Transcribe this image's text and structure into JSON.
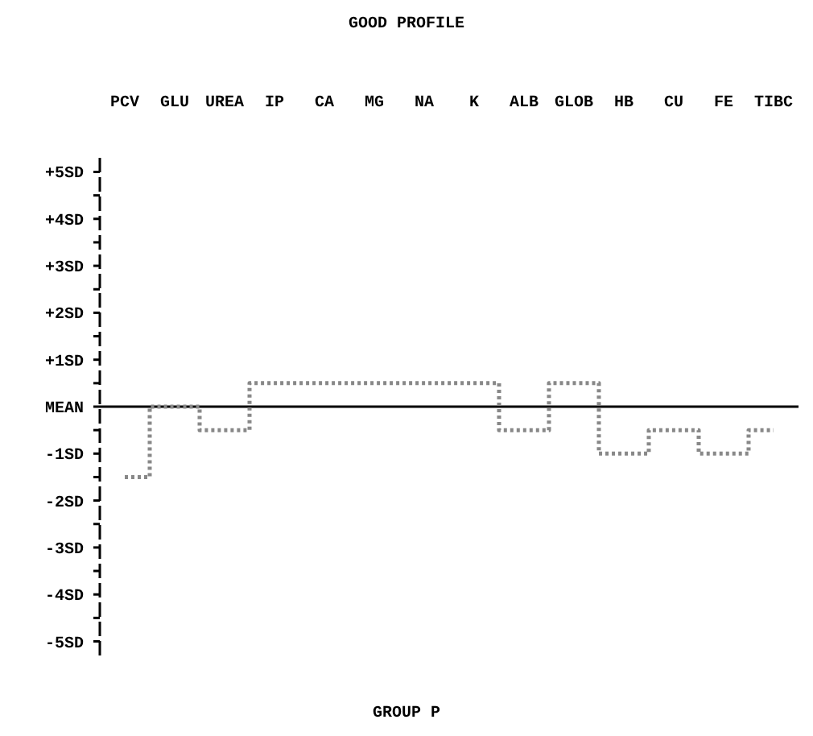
{
  "chart_data": {
    "type": "step",
    "title": "GOOD PROFILE",
    "xlabel": "GROUP P",
    "categories": [
      "PCV",
      "GLU",
      "UREA",
      "IP",
      "CA",
      "MG",
      "NA",
      "K",
      "ALB",
      "GLOB",
      "HB",
      "CU",
      "FE",
      "TIBC"
    ],
    "series": [
      {
        "color": "#888888",
        "values": [
          -1.5,
          0,
          -0.5,
          0.5,
          0.5,
          0.5,
          0.5,
          0.5,
          -0.5,
          0.5,
          -1,
          -0.5,
          -1,
          -0.5
        ]
      }
    ],
    "ylim": [
      -5.3,
      5.3
    ],
    "yticks": [
      {
        "value": 5,
        "label": "+5SD"
      },
      {
        "value": 4.5,
        "label": null
      },
      {
        "value": 4,
        "label": "+4SD"
      },
      {
        "value": 3.5,
        "label": null
      },
      {
        "value": 3,
        "label": "+3SD"
      },
      {
        "value": 2.5,
        "label": null
      },
      {
        "value": 2,
        "label": "+2SD"
      },
      {
        "value": 1.5,
        "label": null
      },
      {
        "value": 1,
        "label": "+1SD"
      },
      {
        "value": 0.5,
        "label": null
      },
      {
        "value": 0,
        "label": "MEAN"
      },
      {
        "value": -0.5,
        "label": null
      },
      {
        "value": -1,
        "label": "-1SD"
      },
      {
        "value": -1.5,
        "label": null
      },
      {
        "value": -2,
        "label": "-2SD"
      },
      {
        "value": -2.5,
        "label": null
      },
      {
        "value": -3,
        "label": "-3SD"
      },
      {
        "value": -3.5,
        "label": null
      },
      {
        "value": -4,
        "label": "-4SD"
      },
      {
        "value": -4.5,
        "label": null
      },
      {
        "value": -5,
        "label": "-5SD"
      }
    ],
    "ref_lines": [
      {
        "axis": "y",
        "value": 0,
        "color": "#000000",
        "line_style": "solid"
      }
    ],
    "line_style": "dotted"
  }
}
